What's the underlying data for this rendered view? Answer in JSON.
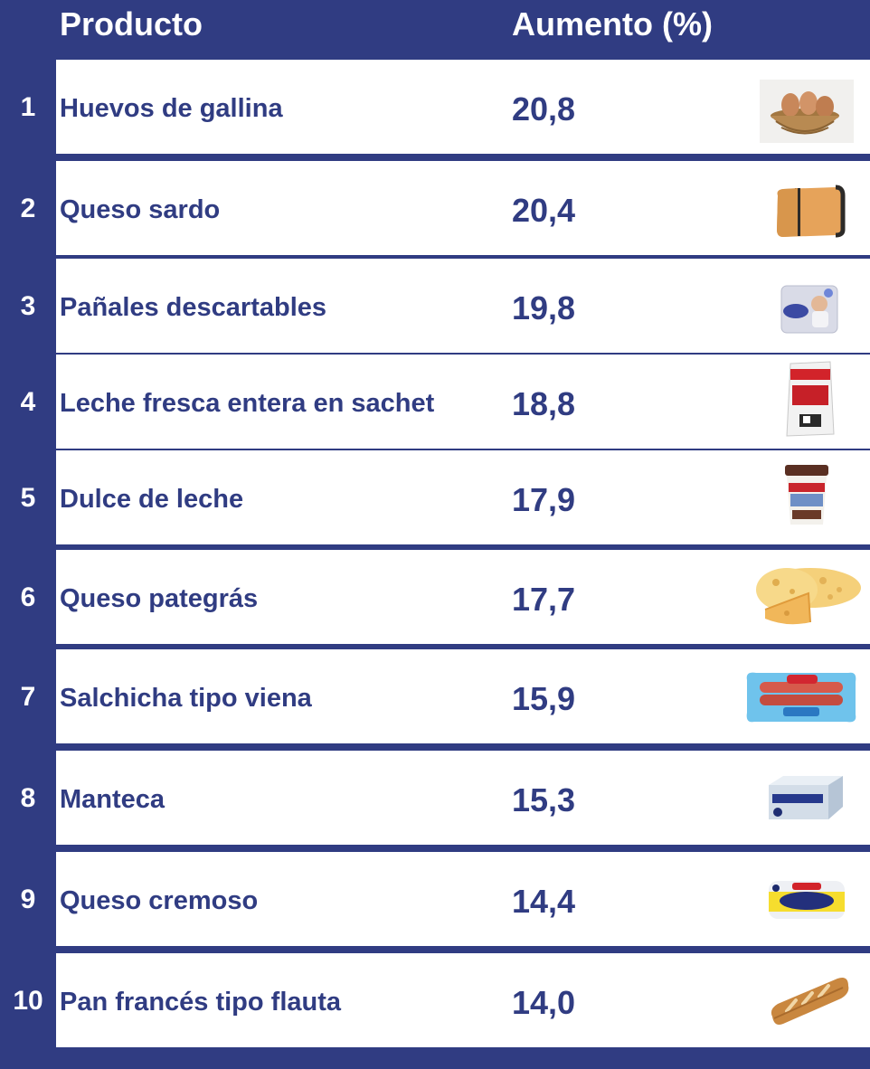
{
  "header": {
    "product": "Producto",
    "increase": "Aumento (%)"
  },
  "colors": {
    "navy": "#303c82",
    "white": "#ffffff"
  },
  "chart_data": {
    "type": "table",
    "columns": [
      "Producto",
      "Aumento (%)"
    ],
    "rows": [
      {
        "rank": "1",
        "product": "Huevos de gallina",
        "value": "20,8",
        "icon": "egg-basket-icon"
      },
      {
        "rank": "2",
        "product": "Queso sardo",
        "value": "20,4",
        "icon": "hard-cheese-icon"
      },
      {
        "rank": "3",
        "product": "Pañales descartables",
        "value": "19,8",
        "icon": "diaper-pack-icon"
      },
      {
        "rank": "4",
        "product": "Leche fresca entera en sachet",
        "value": "18,8",
        "icon": "milk-sachet-icon"
      },
      {
        "rank": "5",
        "product": "Dulce de leche",
        "value": "17,9",
        "icon": "dulce-de-leche-jar-icon"
      },
      {
        "rank": "6",
        "product": "Queso pategrás",
        "value": "17,7",
        "icon": "swiss-cheese-icon"
      },
      {
        "rank": "7",
        "product": "Salchicha tipo viena",
        "value": "15,9",
        "icon": "sausage-pack-icon"
      },
      {
        "rank": "8",
        "product": "Manteca",
        "value": "15,3",
        "icon": "butter-box-icon"
      },
      {
        "rank": "9",
        "product": "Queso cremoso",
        "value": "14,4",
        "icon": "cream-cheese-icon"
      },
      {
        "rank": "10",
        "product": "Pan francés tipo flauta",
        "value": "14,0",
        "icon": "bread-loaf-icon"
      }
    ]
  }
}
